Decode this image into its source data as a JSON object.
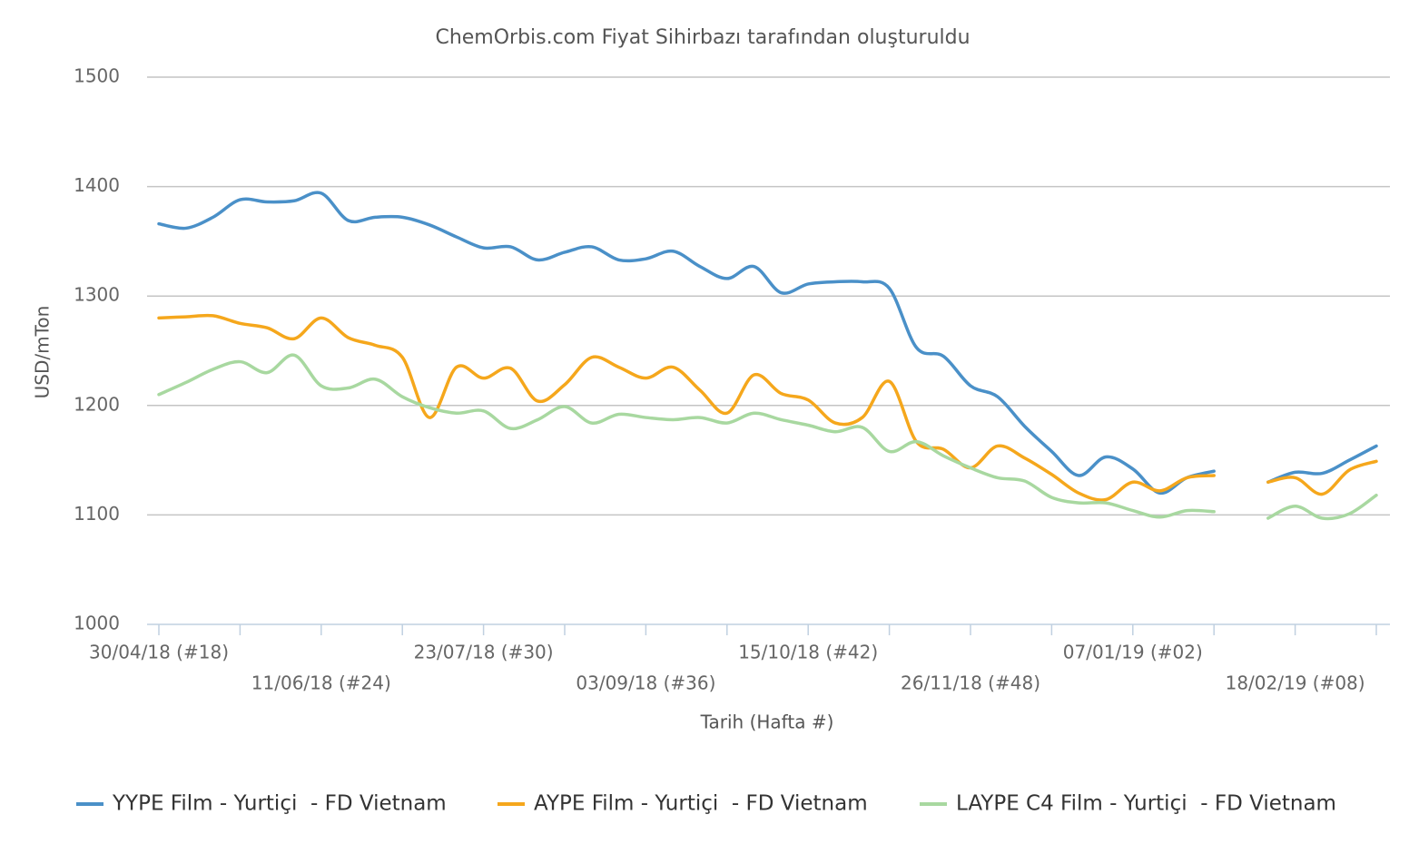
{
  "chart_data": {
    "type": "line",
    "title": "ChemOrbis.com Fiyat Sihirbazı tarafından oluşturuldu",
    "x_label": "Tarih (Hafta #)",
    "y_label": "USD/mTon",
    "categories": [
      "30/04/18 (#18)",
      null,
      null,
      null,
      null,
      null,
      "11/06/18 (#24)",
      null,
      null,
      null,
      null,
      null,
      "23/07/18 (#30)",
      null,
      null,
      null,
      null,
      null,
      "03/09/18 (#36)",
      null,
      null,
      null,
      null,
      null,
      "15/10/18 (#42)",
      null,
      null,
      null,
      null,
      null,
      "26/11/18 (#48)",
      null,
      null,
      null,
      null,
      null,
      "07/01/19 (#02)",
      null,
      null,
      null,
      null,
      null,
      "18/02/19 (#08)",
      null,
      null,
      null
    ],
    "series": [
      {
        "name": "YYPE Film - Yurtiçi  - FD Vietnam",
        "color": "#4a90c8",
        "values": [
          1366,
          1362,
          1372,
          1388,
          1386,
          1387,
          1394,
          1369,
          1372,
          1372,
          1365,
          1354,
          1344,
          1345,
          1333,
          1340,
          1345,
          1333,
          1334,
          1341,
          1327,
          1316,
          1327,
          1303,
          1311,
          1313,
          1313,
          1307,
          1253,
          1245,
          1218,
          1208,
          1181,
          1158,
          1136,
          1153,
          1142,
          1120,
          1134,
          1140,
          null,
          1130,
          1139,
          1138,
          1150,
          1163
        ]
      },
      {
        "name": "AYPE Film - Yurtiçi  - FD Vietnam",
        "color": "#f5a71c",
        "values": [
          1280,
          1281,
          1282,
          1275,
          1271,
          1261,
          1280,
          1262,
          1255,
          1244,
          1189,
          1235,
          1225,
          1234,
          1204,
          1219,
          1244,
          1235,
          1225,
          1235,
          1214,
          1193,
          1228,
          1211,
          1205,
          1184,
          1189,
          1222,
          1167,
          1160,
          1143,
          1163,
          1152,
          1137,
          1120,
          1114,
          1130,
          1122,
          1134,
          1136,
          null,
          1130,
          1134,
          1119,
          1141,
          1149
        ]
      },
      {
        "name": "LAYPE C4 Film - Yurtiçi  - FD Vietnam",
        "color": "#a8d8a0",
        "values": [
          1210,
          1221,
          1233,
          1240,
          1230,
          1246,
          1218,
          1216,
          1224,
          1208,
          1198,
          1193,
          1195,
          1179,
          1187,
          1199,
          1184,
          1192,
          1189,
          1187,
          1189,
          1184,
          1193,
          1187,
          1182,
          1176,
          1180,
          1158,
          1167,
          1154,
          1143,
          1134,
          1131,
          1116,
          1111,
          1111,
          1104,
          1098,
          1104,
          1103,
          null,
          1097,
          1108,
          1097,
          1101,
          1118
        ]
      }
    ],
    "ylim": [
      1000,
      1500
    ],
    "yticks": [
      1000,
      1100,
      1200,
      1300,
      1400,
      1500
    ],
    "grid": true,
    "legend": "bottom"
  }
}
